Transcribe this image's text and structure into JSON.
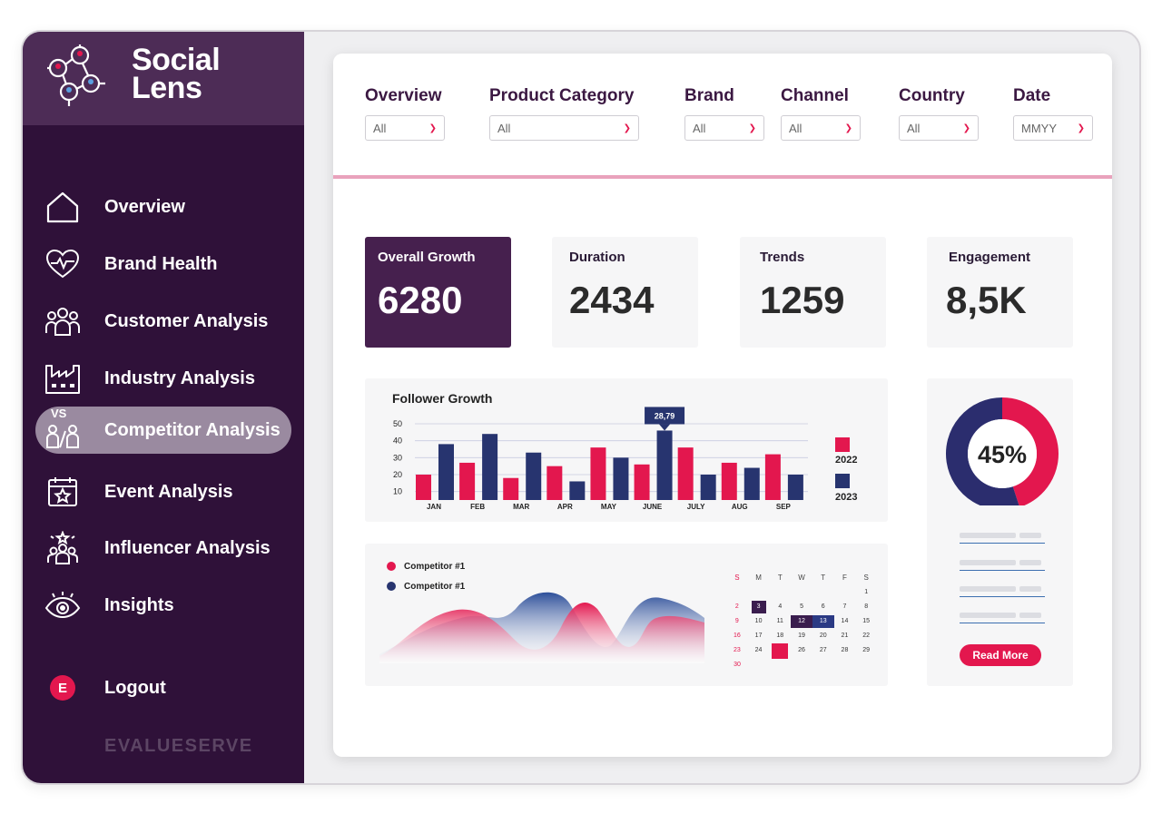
{
  "app": {
    "name_line1": "Social",
    "name_line2": "Lens",
    "footer_brand": "EVALUESERVE",
    "accent": "#e3174e",
    "sidebar_bg": "#2f1139"
  },
  "sidebar": {
    "items": [
      {
        "label": "Overview",
        "icon": "home-icon"
      },
      {
        "label": "Brand Health",
        "icon": "heart-pulse-icon"
      },
      {
        "label": "Customer Analysis",
        "icon": "users-icon"
      },
      {
        "label": "Industry Analysis",
        "icon": "factory-icon"
      },
      {
        "label": "Competitor Analysis",
        "icon": "versus-icon",
        "vs": "VS",
        "active": true
      },
      {
        "label": "Event Analysis",
        "icon": "calendar-star-icon"
      },
      {
        "label": "Influencer Analysis",
        "icon": "influencer-icon"
      },
      {
        "label": "Insights",
        "icon": "eye-icon"
      }
    ],
    "logout": {
      "label": "Logout",
      "badge": "E"
    }
  },
  "filters": [
    {
      "label": "Overview",
      "value": "All"
    },
    {
      "label": "Product Category",
      "value": "All"
    },
    {
      "label": "Brand",
      "value": "All"
    },
    {
      "label": "Channel",
      "value": "All"
    },
    {
      "label": "Country",
      "value": "All"
    },
    {
      "label": "Date",
      "value": "MMYY"
    }
  ],
  "kpis": [
    {
      "title": "Overall Growth",
      "value": "6280"
    },
    {
      "title": "Duration",
      "value": "2434"
    },
    {
      "title": "Trends",
      "value": "1259"
    },
    {
      "title": "Engagement",
      "value": "8,5K"
    }
  ],
  "chart_data": [
    {
      "type": "bar",
      "title": "Follower Growth",
      "categories": [
        "JAN",
        "FEB",
        "MAR",
        "APR",
        "MAY",
        "JUNE",
        "JULY",
        "AUG",
        "SEP"
      ],
      "yticks": [
        10,
        20,
        30,
        40,
        50
      ],
      "ylim": [
        0,
        50
      ],
      "series": [
        {
          "name": "2022",
          "color": "#e3174e",
          "values": [
            20,
            27,
            18,
            25,
            36,
            26,
            36,
            27,
            32
          ]
        },
        {
          "name": "2023",
          "color": "#27346f",
          "values": [
            38,
            44,
            33,
            16,
            30,
            46,
            20,
            24,
            20
          ]
        }
      ],
      "callout": {
        "label": "28,79",
        "category": "JUNE"
      },
      "grid": true,
      "legend": "right"
    },
    {
      "type": "area",
      "series": [
        {
          "name": "Competitor #1",
          "color": "#e3174e"
        },
        {
          "name": "Competitor #1",
          "color": "#2d4f9a"
        }
      ]
    },
    {
      "type": "pie",
      "center_label": "45%",
      "values": [
        45,
        55
      ],
      "colors": [
        "#e3174e",
        "#2b2d6e"
      ]
    }
  ],
  "calendar": {
    "headers": [
      "S",
      "M",
      "T",
      "W",
      "T",
      "F",
      "S"
    ],
    "weeks": [
      [
        "",
        "",
        "",
        "",
        "",
        "",
        "1"
      ],
      [
        "2",
        "3",
        "4",
        "5",
        "6",
        "7",
        "8"
      ],
      [
        "9",
        "10",
        "11",
        "12",
        "13",
        "14",
        "15"
      ],
      [
        "16",
        "17",
        "18",
        "19",
        "20",
        "21",
        "22"
      ],
      [
        "23",
        "24",
        "",
        "26",
        "27",
        "28",
        "29"
      ],
      [
        "30",
        "",
        "",
        "",
        "",
        "",
        ""
      ]
    ]
  },
  "side_panel": {
    "button": "Read More"
  }
}
